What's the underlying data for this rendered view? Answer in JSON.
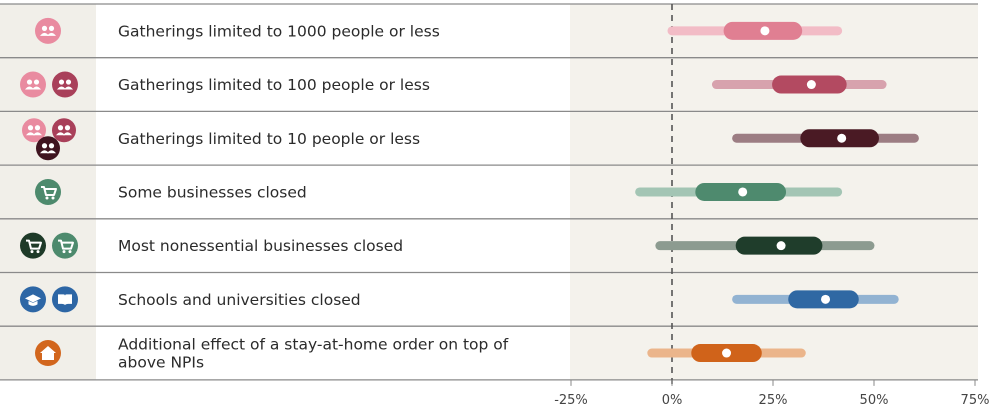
{
  "chart_data": {
    "type": "forest",
    "x_ticks": [
      -25,
      0,
      25,
      50,
      75
    ],
    "x_tick_labels": [
      "-25%",
      "0%",
      "25%",
      "50%",
      "75%"
    ],
    "xlim": [
      -25,
      75
    ],
    "reference_line": 0,
    "rows": [
      {
        "label": "Gatherings limited to 1000 people or less",
        "estimate": 23,
        "inner": [
          15,
          30
        ],
        "outer": [
          0,
          41
        ],
        "color": "#e07f92",
        "light": "#f2bcc6",
        "icons": [
          {
            "name": "people-icon",
            "color": "#e98ba0"
          }
        ]
      },
      {
        "label": "Gatherings limited to 100 people or less",
        "estimate": 34.5,
        "inner": [
          27,
          41
        ],
        "outer": [
          11,
          52
        ],
        "color": "#b34a61",
        "light": "#d7a2ad",
        "icons": [
          {
            "name": "people-icon",
            "color": "#e98ba0"
          },
          {
            "name": "people-icon",
            "color": "#a9405a"
          }
        ]
      },
      {
        "label": "Gatherings limited to 10 people or less",
        "estimate": 42,
        "inner": [
          34,
          49
        ],
        "outer": [
          16,
          60
        ],
        "color": "#4a1a24",
        "light": "#9c7d83",
        "icons": [
          {
            "name": "people-icon",
            "color": "#e98ba0"
          },
          {
            "name": "people-icon",
            "color": "#a9405a"
          },
          {
            "name": "people-icon",
            "color": "#3f1420"
          }
        ]
      },
      {
        "label": "Some businesses closed",
        "estimate": 17.5,
        "inner": [
          8,
          26
        ],
        "outer": [
          -8,
          41
        ],
        "color": "#4e8a6e",
        "light": "#a3c5b4",
        "icons": [
          {
            "name": "cart-icon",
            "color": "#4d8a6d"
          }
        ]
      },
      {
        "label": "Most nonessential businesses closed",
        "estimate": 27,
        "inner": [
          18,
          35
        ],
        "outer": [
          -3,
          49
        ],
        "color": "#1f3d2b",
        "light": "#8c9b90",
        "icons": [
          {
            "name": "cart-icon",
            "color": "#1e3a28"
          },
          {
            "name": "cart-icon",
            "color": "#4d8a6d"
          }
        ]
      },
      {
        "label": "Schools and universities closed",
        "estimate": 38,
        "inner": [
          31,
          44
        ],
        "outer": [
          16,
          55
        ],
        "color": "#2f68a3",
        "light": "#92b3d2",
        "icons": [
          {
            "name": "graduation-cap-icon",
            "color": "#2d66a5"
          },
          {
            "name": "book-icon",
            "color": "#2d66a5"
          }
        ]
      },
      {
        "label": "Additional effect of a stay-at-home order on top of above NPIs",
        "label_lines": [
          "Additional effect of a stay-at-home order on top of",
          "above NPIs"
        ],
        "estimate": 13.5,
        "inner": [
          7,
          20
        ],
        "outer": [
          -5,
          32
        ],
        "color": "#d0631a",
        "light": "#ebb58b",
        "icons": [
          {
            "name": "house-icon",
            "color": "#d2661d"
          }
        ]
      }
    ]
  }
}
